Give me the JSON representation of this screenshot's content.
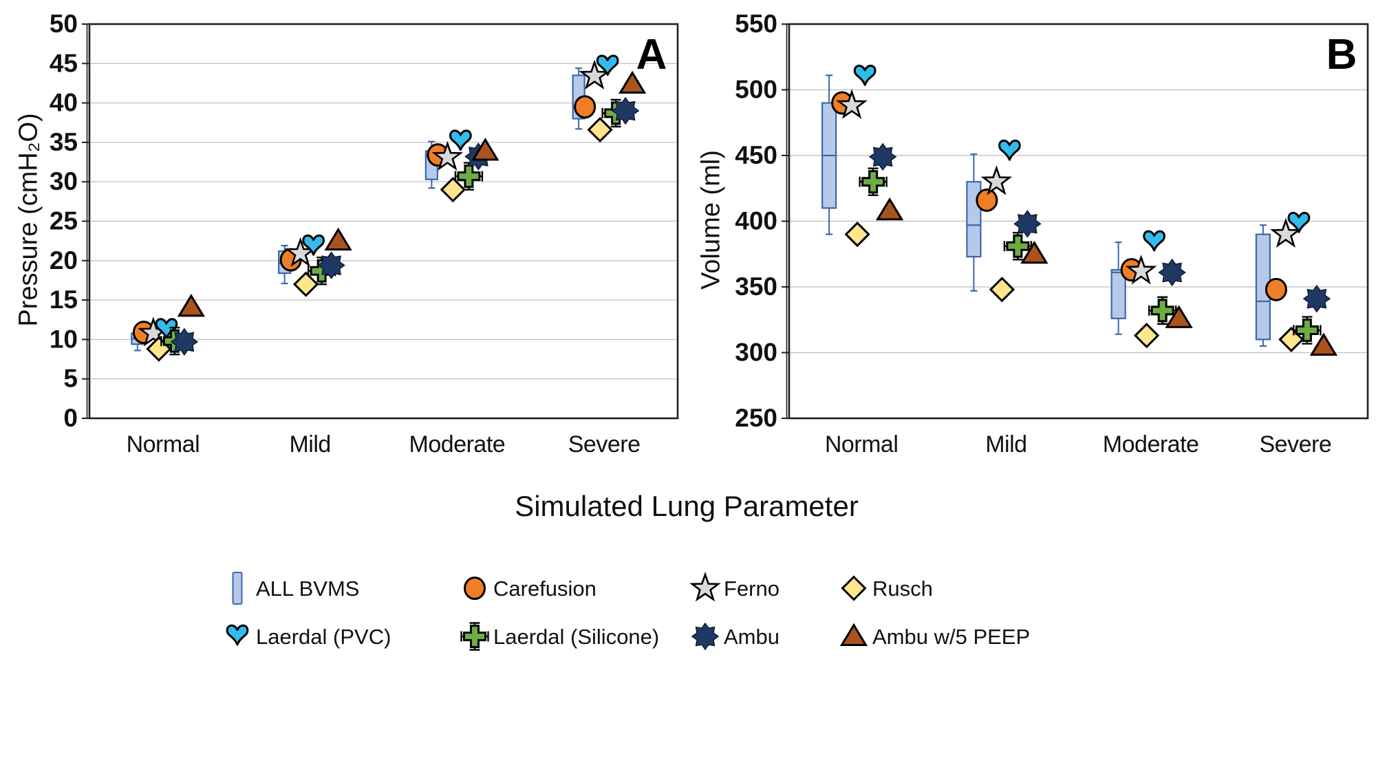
{
  "x_title": "Simulated Lung Parameter",
  "categories": [
    "Normal",
    "Mild",
    "Moderate",
    "Severe"
  ],
  "legend": {
    "rows": [
      [
        {
          "label": "ALL BVMS",
          "marker": "box"
        },
        {
          "label": "Carefusion",
          "marker": "circle"
        },
        {
          "label": "Ferno",
          "marker": "star5"
        },
        {
          "label": "Rusch",
          "marker": "diamond"
        }
      ],
      [
        {
          "label": "Laerdal (PVC)",
          "marker": "heart"
        },
        {
          "label": "Laerdal (Silicone)",
          "marker": "cross"
        },
        {
          "label": "Ambu",
          "marker": "star8"
        },
        {
          "label": "Ambu w/5 PEEP",
          "marker": "triangle"
        }
      ]
    ]
  },
  "colors": {
    "box_fill": "#B7C9E9",
    "box_stroke": "#3A67AE",
    "grid": "#C6C6C6",
    "axis": "#1F1F1F",
    "text": "#111111",
    "circle": "#F07E26",
    "star5": "#D9D9D9",
    "diamond": "#FFE58C",
    "heart": "#33BBEC",
    "cross": "#6CAE45",
    "star8": "#1F3864",
    "triangle": "#A9531D"
  },
  "chart_data": [
    {
      "type": "box-scatter",
      "panel_label": "A",
      "ylabel": "Pressure (cmH₂O)",
      "ylim": [
        0,
        50
      ],
      "ytick_step": 5,
      "yticks": [
        0,
        5,
        10,
        15,
        20,
        25,
        30,
        35,
        40,
        45,
        50
      ],
      "grid": true,
      "categories": [
        "Normal",
        "Mild",
        "Moderate",
        "Severe"
      ],
      "box_series": {
        "name": "ALL BVMS",
        "stats": [
          {
            "whisker_low": 8.6,
            "q1": 9.4,
            "median": 10.1,
            "q3": 10.8,
            "whisker_high": 11.4
          },
          {
            "whisker_low": 17.1,
            "q1": 18.4,
            "median": 19.7,
            "q3": 21.2,
            "whisker_high": 21.9
          },
          {
            "whisker_low": 29.2,
            "q1": 30.3,
            "median": 33.3,
            "q3": 33.9,
            "whisker_high": 35.1
          },
          {
            "whisker_low": 36.7,
            "q1": 38.0,
            "median": 39.4,
            "q3": 43.5,
            "whisker_high": 44.4
          }
        ]
      },
      "series": [
        {
          "name": "Carefusion",
          "marker": "circle",
          "values": [
            10.9,
            20.1,
            33.4,
            39.5
          ]
        },
        {
          "name": "Ferno",
          "marker": "star5",
          "values": [
            10.8,
            20.9,
            33.1,
            43.4
          ]
        },
        {
          "name": "Laerdal (PVC)",
          "marker": "heart",
          "values": [
            11.2,
            21.8,
            35.1,
            44.6
          ]
        },
        {
          "name": "Rusch",
          "marker": "diamond",
          "values": [
            8.8,
            17.0,
            29.0,
            36.6
          ]
        },
        {
          "name": "Laerdal (Silicone)",
          "marker": "cross",
          "values": [
            9.8,
            18.7,
            30.7,
            38.7
          ]
        },
        {
          "name": "Ambu",
          "marker": "star8",
          "values": [
            9.7,
            19.4,
            33.2,
            39.0
          ]
        },
        {
          "name": "Ambu w/5 PEEP",
          "marker": "triangle",
          "values": [
            14.1,
            22.5,
            33.9,
            42.4
          ]
        }
      ]
    },
    {
      "type": "box-scatter",
      "panel_label": "B",
      "ylabel": "Volume (ml)",
      "ylim": [
        250,
        550
      ],
      "ytick_step": 50,
      "yticks": [
        250,
        300,
        350,
        400,
        450,
        500,
        550
      ],
      "grid": true,
      "categories": [
        "Normal",
        "Mild",
        "Moderate",
        "Severe"
      ],
      "box_series": {
        "name": "ALL BVMS",
        "stats": [
          {
            "whisker_low": 390,
            "q1": 410,
            "median": 450,
            "q3": 490,
            "whisker_high": 511
          },
          {
            "whisker_low": 347,
            "q1": 373,
            "median": 397,
            "q3": 430,
            "whisker_high": 451
          },
          {
            "whisker_low": 314,
            "q1": 326,
            "median": 361,
            "q3": 363,
            "whisker_high": 384
          },
          {
            "whisker_low": 305,
            "q1": 310,
            "median": 339,
            "q3": 390,
            "whisker_high": 397
          }
        ]
      },
      "series": [
        {
          "name": "Carefusion",
          "marker": "circle",
          "values": [
            490,
            416,
            363,
            348
          ]
        },
        {
          "name": "Ferno",
          "marker": "star5",
          "values": [
            488,
            430,
            362,
            390
          ]
        },
        {
          "name": "Laerdal (PVC)",
          "marker": "heart",
          "values": [
            510,
            453,
            384,
            398
          ]
        },
        {
          "name": "Rusch",
          "marker": "diamond",
          "values": [
            390,
            348,
            313,
            310
          ]
        },
        {
          "name": "Laerdal (Silicone)",
          "marker": "cross",
          "values": [
            430,
            381,
            332,
            317
          ]
        },
        {
          "name": "Ambu",
          "marker": "star8",
          "values": [
            449,
            398,
            361,
            341
          ]
        },
        {
          "name": "Ambu w/5 PEEP",
          "marker": "triangle",
          "values": [
            408,
            375,
            326,
            305
          ]
        }
      ]
    }
  ]
}
